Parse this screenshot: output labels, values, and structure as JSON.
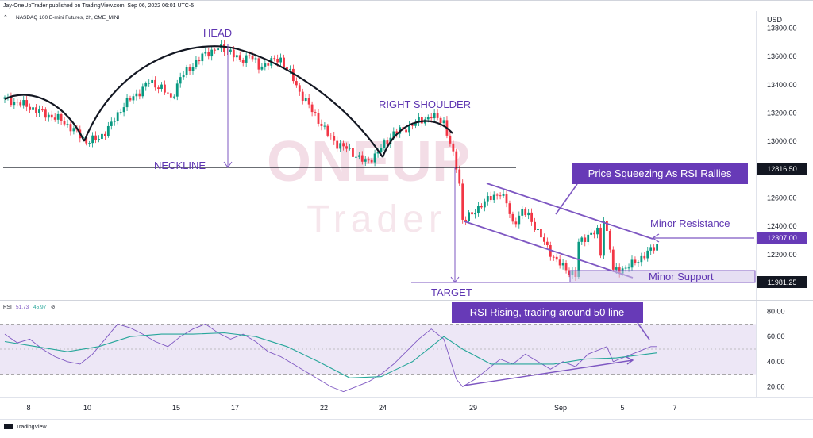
{
  "header": {
    "publisher": "Jay-OneUpTrader published on TradingView.com, Sep 06, 2022 06:01 UTC-5",
    "symbol": "NASDAQ 100 E-mini Futures, 2h, CME_MINI"
  },
  "watermark": {
    "line1": "ONEUP",
    "line2": "Trader"
  },
  "footer": {
    "brand": "TradingView"
  },
  "colors": {
    "up": "#089981",
    "down": "#f23645",
    "annotation": "#7e57c2",
    "callout_bg": "#673ab7",
    "rsi_line": "#7e57c2",
    "rsi_ma": "#26a69a",
    "rsi_band": "#ede7f6"
  },
  "chart_data": [
    {
      "type": "candlestick",
      "currency": "USD",
      "y_ticks": [
        12200,
        12400,
        12600,
        13000,
        13200,
        13400,
        13600,
        13800
      ],
      "x_ticks": [
        "8",
        "10",
        "15",
        "17",
        "22",
        "24",
        "29",
        "Sep",
        "5",
        "7"
      ],
      "ylim": [
        11880,
        13920
      ],
      "close_path": [
        [
          0,
          13300
        ],
        [
          6,
          13260
        ],
        [
          12,
          13200
        ],
        [
          18,
          13150
        ],
        [
          22,
          13080
        ],
        [
          26,
          13000
        ],
        [
          30,
          13020
        ],
        [
          34,
          13120
        ],
        [
          38,
          13260
        ],
        [
          42,
          13330
        ],
        [
          46,
          13420
        ],
        [
          50,
          13380
        ],
        [
          53,
          13300
        ],
        [
          56,
          13450
        ],
        [
          60,
          13540
        ],
        [
          64,
          13620
        ],
        [
          68,
          13660
        ],
        [
          72,
          13640
        ],
        [
          75,
          13560
        ],
        [
          78,
          13620
        ],
        [
          81,
          13520
        ],
        [
          84,
          13560
        ],
        [
          88,
          13580
        ],
        [
          91,
          13480
        ],
        [
          94,
          13350
        ],
        [
          97,
          13250
        ],
        [
          100,
          13150
        ],
        [
          103,
          13050
        ],
        [
          106,
          12980
        ],
        [
          109,
          12950
        ],
        [
          112,
          12900
        ],
        [
          115,
          12850
        ],
        [
          118,
          12900
        ],
        [
          121,
          12980
        ],
        [
          124,
          13060
        ],
        [
          127,
          13080
        ],
        [
          130,
          13120
        ],
        [
          133,
          13150
        ],
        [
          136,
          13180
        ],
        [
          140,
          13140
        ],
        [
          142,
          12980
        ],
        [
          144,
          12820
        ],
        [
          145,
          12700
        ],
        [
          146,
          12450
        ],
        [
          149,
          12480
        ],
        [
          152,
          12560
        ],
        [
          155,
          12600
        ],
        [
          158,
          12640
        ],
        [
          160,
          12560
        ],
        [
          162,
          12420
        ],
        [
          165,
          12500
        ],
        [
          167,
          12480
        ],
        [
          170,
          12360
        ],
        [
          173,
          12250
        ],
        [
          176,
          12150
        ],
        [
          179,
          12100
        ],
        [
          182,
          12050
        ],
        [
          183,
          12280
        ],
        [
          186,
          12340
        ],
        [
          189,
          12360
        ],
        [
          190,
          12200
        ],
        [
          191,
          12460
        ],
        [
          193,
          12250
        ],
        [
          194,
          12080
        ],
        [
          197,
          12100
        ],
        [
          200,
          12130
        ],
        [
          203,
          12180
        ],
        [
          206,
          12230
        ],
        [
          208,
          12270
        ]
      ],
      "annotations": {
        "head": "HEAD",
        "right_shoulder": "RIGHT SHOULDER",
        "neckline": "NECKLINE",
        "target": "TARGET",
        "squeeze_callout": "Price Squeezing As RSI Rallies",
        "minor_resistance": "Minor Resistance",
        "minor_support": "Minor Support"
      },
      "price_labels": [
        "12816.50",
        "12307.00",
        "11981.25"
      ]
    },
    {
      "type": "line",
      "title": "RSI",
      "legend_values": [
        "51.73",
        "45.97",
        "⊘"
      ],
      "y_ticks": [
        20.0,
        40.0,
        60.0,
        80.0
      ],
      "ylim": [
        12,
        88
      ],
      "band": [
        30,
        70
      ],
      "midline": 50,
      "series": [
        {
          "values": [
            [
              0,
              62
            ],
            [
              4,
              55
            ],
            [
              8,
              58
            ],
            [
              12,
              50
            ],
            [
              16,
              44
            ],
            [
              20,
              40
            ],
            [
              24,
              38
            ],
            [
              28,
              46
            ],
            [
              32,
              58
            ],
            [
              36,
              70
            ],
            [
              40,
              67
            ],
            [
              44,
              62
            ],
            [
              48,
              56
            ],
            [
              52,
              52
            ],
            [
              56,
              60
            ],
            [
              60,
              66
            ],
            [
              64,
              70
            ],
            [
              68,
              63
            ],
            [
              72,
              58
            ],
            [
              76,
              62
            ],
            [
              80,
              56
            ],
            [
              84,
              48
            ],
            [
              88,
              44
            ],
            [
              92,
              38
            ],
            [
              96,
              32
            ],
            [
              100,
              26
            ],
            [
              104,
              20
            ],
            [
              108,
              16
            ],
            [
              112,
              20
            ],
            [
              116,
              24
            ],
            [
              120,
              30
            ],
            [
              124,
              38
            ],
            [
              128,
              48
            ],
            [
              132,
              58
            ],
            [
              136,
              66
            ],
            [
              140,
              58
            ],
            [
              142,
              42
            ],
            [
              144,
              26
            ],
            [
              146,
              20
            ],
            [
              150,
              26
            ],
            [
              154,
              34
            ],
            [
              158,
              42
            ],
            [
              162,
              38
            ],
            [
              166,
              46
            ],
            [
              170,
              40
            ],
            [
              174,
              34
            ],
            [
              178,
              40
            ],
            [
              182,
              36
            ],
            [
              186,
              46
            ],
            [
              190,
              50
            ],
            [
              192,
              52
            ],
            [
              194,
              40
            ],
            [
              198,
              44
            ],
            [
              202,
              48
            ],
            [
              206,
              52
            ],
            [
              208,
              52
            ]
          ]
        },
        {
          "values": [
            [
              0,
              56
            ],
            [
              10,
              52
            ],
            [
              20,
              48
            ],
            [
              30,
              52
            ],
            [
              40,
              60
            ],
            [
              50,
              62
            ],
            [
              60,
              62
            ],
            [
              70,
              63
            ],
            [
              80,
              60
            ],
            [
              90,
              52
            ],
            [
              100,
              40
            ],
            [
              110,
              27
            ],
            [
              120,
              28
            ],
            [
              130,
              40
            ],
            [
              140,
              60
            ],
            [
              146,
              50
            ],
            [
              155,
              38
            ],
            [
              165,
              38
            ],
            [
              175,
              38
            ],
            [
              185,
              42
            ],
            [
              195,
              43
            ],
            [
              208,
              47
            ]
          ]
        }
      ],
      "annotations": {
        "rsi_callout": "RSI Rising, trading around 50 line"
      }
    }
  ]
}
